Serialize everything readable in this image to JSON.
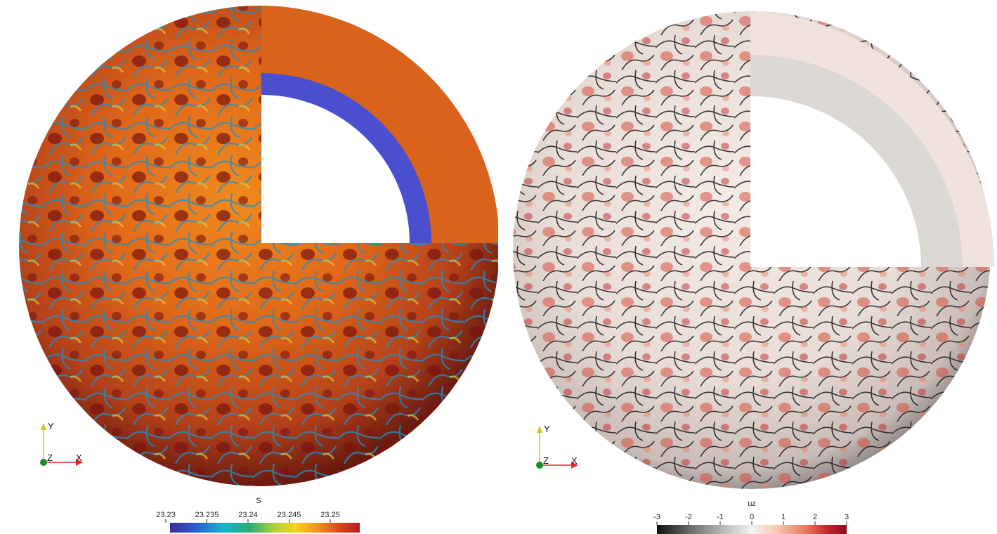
{
  "panels": [
    {
      "field": "S",
      "colormap": [
        "#3b2e9c",
        "#2a5fd1",
        "#0fb5d0",
        "#2ab070",
        "#b8d431",
        "#f5d21a",
        "#f5901e",
        "#d9431a",
        "#b8182a"
      ],
      "tick_labels": [
        "23.23",
        "23.235",
        "23.24",
        "23.245",
        "23.25"
      ],
      "cutaway_inner_color": "#4a4fd0",
      "cutaway_outer_color": "#d9631a"
    },
    {
      "field": "uz",
      "colormap": [
        "#111111",
        "#6d6d6d",
        "#c7c7c7",
        "#f1f1f1",
        "#f7cdb8",
        "#e77b62",
        "#c1272d",
        "#8a0b1e"
      ],
      "tick_labels": [
        "-3",
        "-2",
        "-1",
        "0",
        "1",
        "2",
        "3"
      ],
      "cutaway_inner_color": "#dcd8d4",
      "cutaway_outer_color": "#f0e2dc"
    }
  ],
  "axes": {
    "y": "Y",
    "z": "Z",
    "x": "X"
  }
}
